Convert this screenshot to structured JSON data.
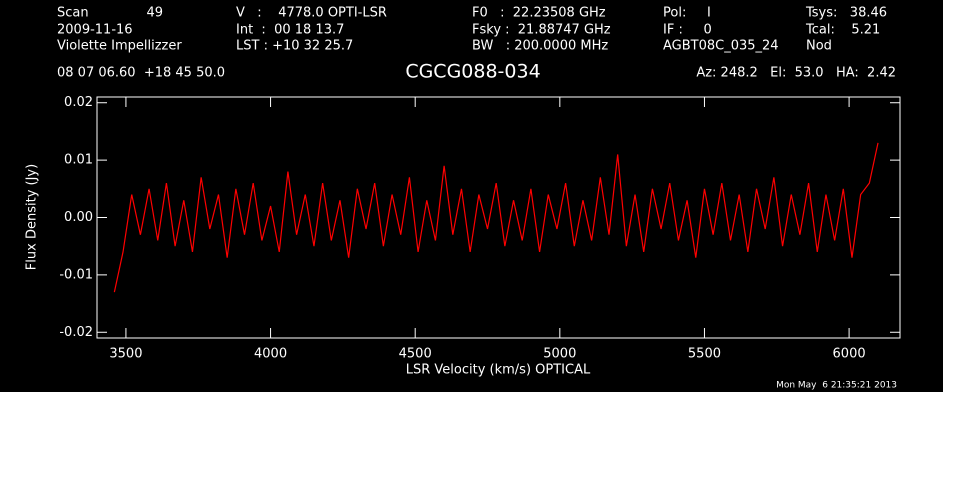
{
  "header": {
    "items": [
      "Scan",
      "49",
      "2009-11-16",
      "Violette Impellizzer",
      "V   :    4778.0 OPTI-LSR",
      "Int  :  00 18 13.7",
      "LST : +10 32 25.7",
      "F0   :  22.23508 GHz",
      "Fsky :  21.88747 GHz",
      "BW   : 200.0000 MHz",
      "Pol:     I",
      "IF :     0",
      "AGBT08C_035_24",
      "Tsys:   38.46",
      "Tcal:    5.21",
      "Nod",
      "08 07 06.60  +18 45 50.0",
      "Az: 248.2   El:  53.0   HA:  2.42"
    ],
    "timestamp": "Mon May  6 21:35:21 2013"
  },
  "chart_data": {
    "type": "line",
    "title": "CGCG088-034",
    "x_label": "LSR Velocity (km/s) OPTICAL",
    "y_label": "Flux Density (Jy)",
    "xlim": [
      3400,
      6176
    ],
    "ylim": [
      -0.021,
      0.021
    ],
    "xticks": [
      3500,
      4000,
      4500,
      5000,
      5500,
      6000
    ],
    "yticks": [
      -0.02,
      -0.01,
      {
        "value": 0,
        "label": "0.00"
      },
      0.01,
      0.02
    ],
    "color": "#ff0000",
    "x": [
      3460,
      3490,
      3520,
      3550,
      3580,
      3610,
      3640,
      3670,
      3700,
      3730,
      3760,
      3790,
      3820,
      3850,
      3880,
      3910,
      3940,
      3970,
      4000,
      4030,
      4060,
      4090,
      4120,
      4150,
      4180,
      4210,
      4240,
      4270,
      4300,
      4330,
      4360,
      4390,
      4420,
      4450,
      4480,
      4510,
      4540,
      4570,
      4600,
      4630,
      4660,
      4690,
      4720,
      4750,
      4780,
      4810,
      4840,
      4870,
      4900,
      4930,
      4960,
      4990,
      5020,
      5050,
      5080,
      5110,
      5140,
      5170,
      5200,
      5230,
      5260,
      5290,
      5320,
      5350,
      5380,
      5410,
      5440,
      5470,
      5500,
      5530,
      5560,
      5590,
      5620,
      5650,
      5680,
      5710,
      5740,
      5770,
      5800,
      5830,
      5860,
      5890,
      5920,
      5950,
      5980,
      6010,
      6040,
      6070,
      6100
    ],
    "values": [
      -0.013,
      -0.006,
      0.004,
      -0.003,
      0.005,
      -0.004,
      0.006,
      -0.005,
      0.003,
      -0.006,
      0.007,
      -0.002,
      0.004,
      -0.007,
      0.005,
      -0.003,
      0.006,
      -0.004,
      0.002,
      -0.006,
      0.008,
      -0.003,
      0.004,
      -0.005,
      0.006,
      -0.004,
      0.003,
      -0.007,
      0.005,
      -0.002,
      0.006,
      -0.005,
      0.004,
      -0.003,
      0.007,
      -0.006,
      0.003,
      -0.004,
      0.009,
      -0.003,
      0.005,
      -0.006,
      0.004,
      -0.002,
      0.006,
      -0.005,
      0.003,
      -0.004,
      0.005,
      -0.006,
      0.004,
      -0.002,
      0.006,
      -0.005,
      0.003,
      -0.004,
      0.007,
      -0.003,
      0.011,
      -0.005,
      0.004,
      -0.006,
      0.005,
      -0.002,
      0.006,
      -0.004,
      0.003,
      -0.007,
      0.005,
      -0.003,
      0.006,
      -0.004,
      0.004,
      -0.006,
      0.005,
      -0.002,
      0.007,
      -0.005,
      0.004,
      -0.003,
      0.006,
      -0.006,
      0.004,
      -0.004,
      0.005,
      -0.007,
      0.004,
      0.006,
      0.013
    ]
  }
}
